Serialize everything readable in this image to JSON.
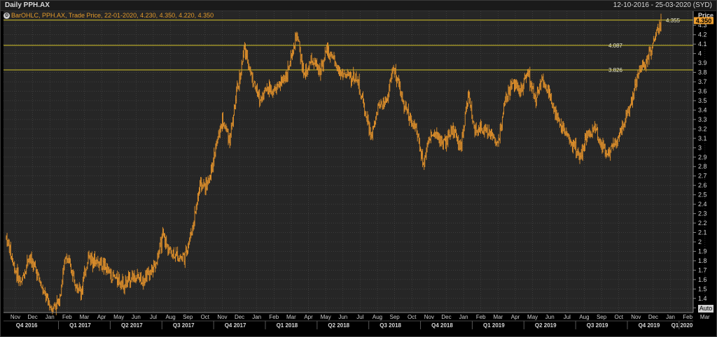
{
  "window": {
    "title": "Daily PPH.AX",
    "date_range": "12-10-2016 - 25-03-2020 (SYD)"
  },
  "legend": {
    "text": "BarOHLC, PPH.AX, Trade Price, 22-01-2020, 4.230, 4.350, 4.220, 4.350"
  },
  "controls": {
    "auto_label": "Auto"
  },
  "colors": {
    "background": "#262626",
    "grid": "#4a4a4a",
    "price_bars": "#e8952b",
    "horizontal_lines": "#d6c52a",
    "last_price_badge": "#f0a030"
  },
  "chart_data": {
    "type": "bar",
    "subtype": "ohlc",
    "ylabel": "Price",
    "ylim": [
      1.25,
      4.45
    ],
    "y_ticks": [
      "1.3",
      "1.4",
      "1.5",
      "1.6",
      "1.7",
      "1.8",
      "1.9",
      "2",
      "2.1",
      "2.2",
      "2.3",
      "2.4",
      "2.5",
      "2.6",
      "2.7",
      "2.8",
      "2.9",
      "3",
      "3.1",
      "3.2",
      "3.3",
      "3.4",
      "3.5",
      "3.6",
      "3.7",
      "3.8",
      "3.9",
      "4",
      "4.1",
      "4.2",
      "4.3"
    ],
    "x_range": [
      "2016-10-12",
      "2020-03-25"
    ],
    "month_labels": [
      "Nov",
      "Dec",
      "Jan",
      "Feb",
      "Mar",
      "Apr",
      "May",
      "Jun",
      "Jul",
      "Aug",
      "Sep",
      "Oct",
      "Nov",
      "Dec",
      "Jan",
      "Feb",
      "Mar",
      "Apr",
      "May",
      "Jun",
      "Jul",
      "Aug",
      "Sep",
      "Oct",
      "Nov",
      "Dec",
      "Jan",
      "Feb",
      "Mar",
      "Apr",
      "May",
      "Jun",
      "Jul",
      "Aug",
      "Sep",
      "Oct",
      "Nov",
      "Dec",
      "Jan",
      "Feb",
      "Mar"
    ],
    "quarter_labels": [
      "Q4 2016",
      "Q1 2017",
      "Q2 2017",
      "Q3 2017",
      "Q4 2017",
      "Q1 2018",
      "Q2 2018",
      "Q3 2018",
      "Q4 2018",
      "Q1 2019",
      "Q2 2019",
      "Q3 2019",
      "Q4 2019",
      "Q1 2020"
    ],
    "horizontal_lines": [
      {
        "value": 4.355,
        "label": "4.355"
      },
      {
        "value": 4.087,
        "label": "4.087"
      },
      {
        "value": 3.826,
        "label": "3.826"
      }
    ],
    "last_price": {
      "value": 4.35,
      "label": "4.350"
    },
    "price_path": [
      [
        2.05,
        1.95
      ],
      [
        1.75,
        1.7
      ],
      [
        1.55,
        1.6
      ],
      [
        1.85,
        1.75
      ],
      [
        1.7,
        1.6
      ],
      [
        1.45,
        1.5
      ],
      [
        1.3,
        1.3
      ],
      [
        1.35,
        1.4
      ],
      [
        1.85,
        1.8
      ],
      [
        1.65,
        1.5
      ],
      [
        1.45,
        1.55
      ],
      [
        1.85,
        1.8
      ],
      [
        1.8,
        1.75
      ],
      [
        1.75,
        1.7
      ],
      [
        1.65,
        1.6
      ],
      [
        1.6,
        1.65
      ],
      [
        1.55,
        1.6
      ],
      [
        1.65,
        1.6
      ],
      [
        1.6,
        1.65
      ],
      [
        1.65,
        1.6
      ],
      [
        1.75,
        1.8
      ],
      [
        2.05,
        2.0
      ],
      [
        1.9,
        1.85
      ],
      [
        1.85,
        1.8
      ],
      [
        1.85,
        1.9
      ],
      [
        2.15,
        2.3
      ],
      [
        2.6,
        2.7
      ],
      [
        2.6,
        2.55
      ],
      [
        2.95,
        3.0
      ],
      [
        3.3,
        3.5
      ],
      [
        3.1,
        3.2
      ],
      [
        3.6,
        3.9
      ],
      [
        4.05,
        3.95
      ],
      [
        3.75,
        3.6
      ],
      [
        3.5,
        3.4
      ],
      [
        3.65,
        3.7
      ],
      [
        3.6,
        3.55
      ],
      [
        3.7,
        3.6
      ],
      [
        3.85,
        4.0
      ],
      [
        4.2,
        4.1
      ],
      [
        3.75,
        3.8
      ],
      [
        3.95,
        3.85
      ],
      [
        3.8,
        3.75
      ],
      [
        4.05,
        4.1
      ],
      [
        3.9,
        3.85
      ],
      [
        3.8,
        3.95
      ],
      [
        3.75,
        3.7
      ],
      [
        3.75,
        3.7
      ],
      [
        3.45,
        3.3
      ],
      [
        3.1,
        3.15
      ],
      [
        3.45,
        3.55
      ],
      [
        3.5,
        3.45
      ],
      [
        3.85,
        3.8
      ],
      [
        3.55,
        3.5
      ],
      [
        3.35,
        3.3
      ],
      [
        3.2,
        3.1
      ],
      [
        2.85,
        2.75
      ],
      [
        3.15,
        3.1
      ],
      [
        3.1,
        3.0
      ],
      [
        3.05,
        3.1
      ],
      [
        3.2,
        3.1
      ],
      [
        3.0,
        3.1
      ],
      [
        3.55,
        3.5
      ],
      [
        3.15,
        3.1
      ],
      [
        3.2,
        3.15
      ],
      [
        3.15,
        3.1
      ],
      [
        3.05,
        3.0
      ],
      [
        3.5,
        3.45
      ],
      [
        3.7,
        3.6
      ],
      [
        3.6,
        3.7
      ],
      [
        3.8,
        3.75
      ],
      [
        3.5,
        3.55
      ],
      [
        3.75,
        3.7
      ],
      [
        3.55,
        3.5
      ],
      [
        3.3,
        3.25
      ],
      [
        3.15,
        3.2
      ],
      [
        3.05,
        3.0
      ],
      [
        2.9,
        2.85
      ],
      [
        3.15,
        3.1
      ],
      [
        3.2,
        3.15
      ],
      [
        3.0,
        2.95
      ],
      [
        2.95,
        3.0
      ],
      [
        3.1,
        3.2
      ],
      [
        3.3,
        3.25
      ],
      [
        3.5,
        3.6
      ],
      [
        3.85,
        3.8
      ],
      [
        3.9,
        3.95
      ],
      [
        4.15,
        4.25
      ],
      [
        4.35,
        4.35
      ]
    ]
  }
}
